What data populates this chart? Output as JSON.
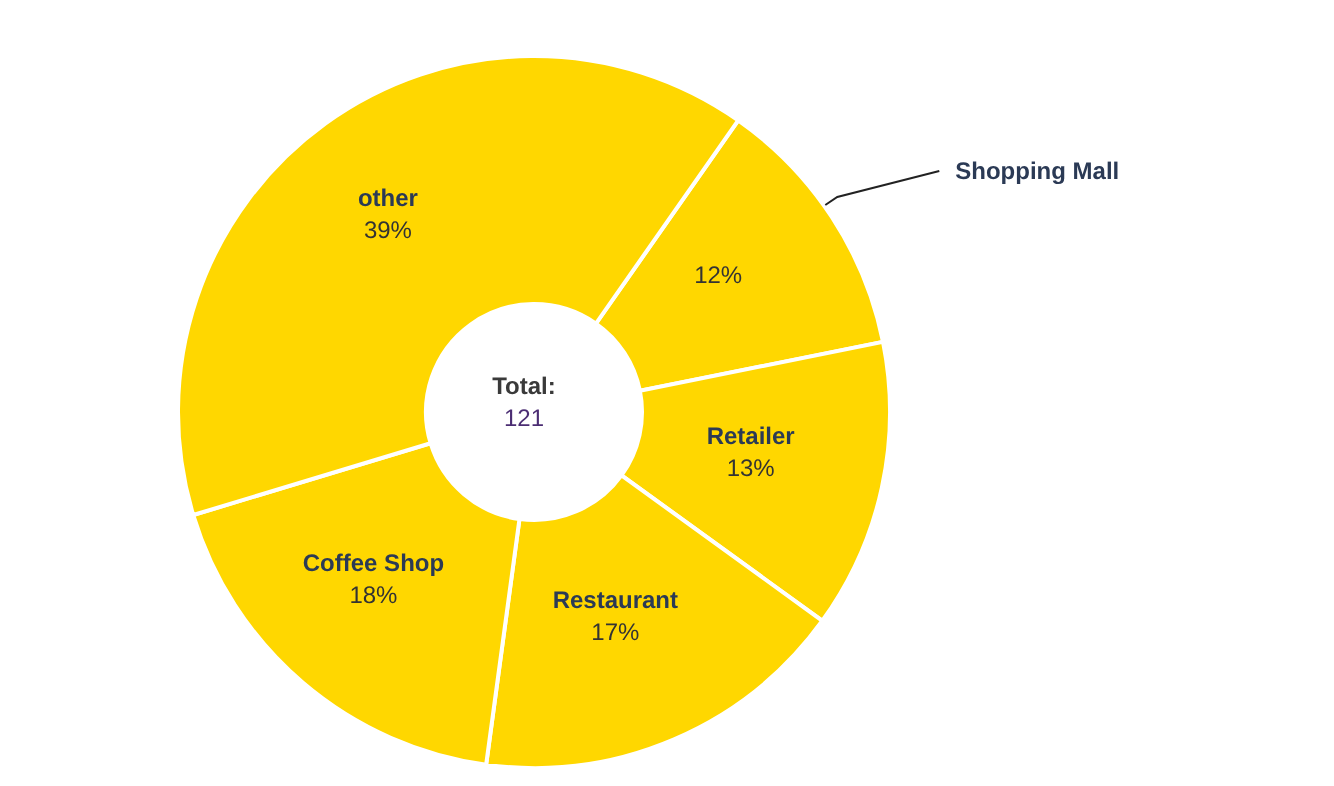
{
  "chart_data": {
    "type": "donut",
    "categories": [
      "Shopping Mall",
      "Retailer",
      "Restaurant",
      "Coffee Shop",
      "other"
    ],
    "values": [
      12,
      13,
      17,
      18,
      39
    ],
    "value_labels": [
      "12%",
      "13%",
      "17%",
      "18%",
      "39%"
    ],
    "colors": [
      "#ffd700",
      "#ffd700",
      "#ffd700",
      "#ffd700",
      "#ffd700"
    ],
    "annotations": [
      "Total:",
      "121"
    ],
    "legend": false
  }
}
